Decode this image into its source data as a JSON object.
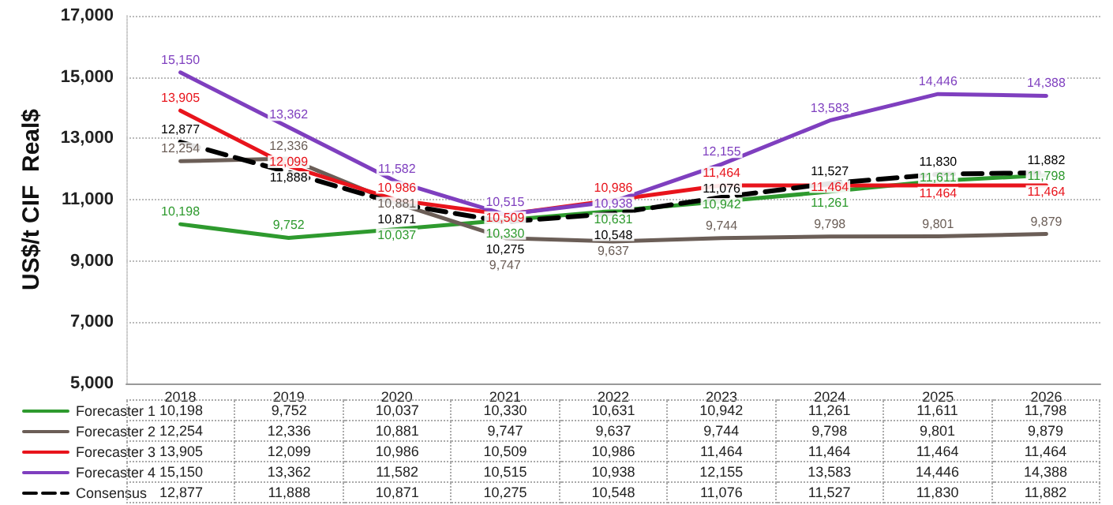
{
  "chart_data": {
    "type": "line",
    "ylabel": "US$/t CIF  Real$",
    "categories": [
      "2018",
      "2019",
      "2020",
      "2021",
      "2022",
      "2023",
      "2024",
      "2025",
      "2026"
    ],
    "series": [
      {
        "name": "Forecaster 1",
        "color": "#2e9a2e",
        "values": [
          10198,
          9752,
          10037,
          10330,
          10631,
          10942,
          11261,
          11611,
          11798
        ],
        "value_labels": [
          "10,198",
          "9,752",
          "10,037",
          "10,330",
          "10,631",
          "10,942",
          "11,261",
          "11,611",
          "11,798"
        ]
      },
      {
        "name": "Forecaster 2",
        "color": "#6b5e57",
        "values": [
          12254,
          12336,
          10881,
          9747,
          9637,
          9744,
          9798,
          9801,
          9879
        ],
        "value_labels": [
          "12,254",
          "12,336",
          "10,881",
          "9,747",
          "9,637",
          "9,744",
          "9,798",
          "9,801",
          "9,879"
        ]
      },
      {
        "name": "Forecaster 3",
        "color": "#e8141c",
        "values": [
          13905,
          12099,
          10986,
          10509,
          10986,
          11464,
          11464,
          11464,
          11464
        ],
        "value_labels": [
          "13,905",
          "12,099",
          "10,986",
          "10,509",
          "10,986",
          "11,464",
          "11,464",
          "11,464",
          "11,464"
        ]
      },
      {
        "name": "Forecaster 4",
        "color": "#7f3fbf",
        "values": [
          15150,
          13362,
          11582,
          10515,
          10938,
          12155,
          13583,
          14446,
          14388
        ],
        "value_labels": [
          "15,150",
          "13,362",
          "11,582",
          "10,515",
          "10,938",
          "12,155",
          "13,583",
          "14,446",
          "14,388"
        ]
      },
      {
        "name": "Consensus",
        "color": "#000000",
        "values": [
          12877,
          11888,
          10871,
          10275,
          10548,
          11076,
          11527,
          11830,
          11882
        ],
        "value_labels": [
          "12,877",
          "11,888",
          "10,871",
          "10,275",
          "10,548",
          "11,076",
          "11,527",
          "11,830",
          "11,882"
        ],
        "line_style": "dashed"
      }
    ],
    "ylim": [
      5000,
      17000
    ],
    "yticks": [
      {
        "value": 5000,
        "label": "5,000"
      },
      {
        "value": 7000,
        "label": "7,000"
      },
      {
        "value": 9000,
        "label": "9,000"
      },
      {
        "value": 11000,
        "label": "11,000"
      },
      {
        "value": 13000,
        "label": "13,000"
      },
      {
        "value": 15000,
        "label": "15,000"
      },
      {
        "value": 17000,
        "label": "17,000"
      }
    ],
    "grid": "y",
    "legend": "bottom left",
    "marker": "none",
    "line_style": "solid"
  }
}
